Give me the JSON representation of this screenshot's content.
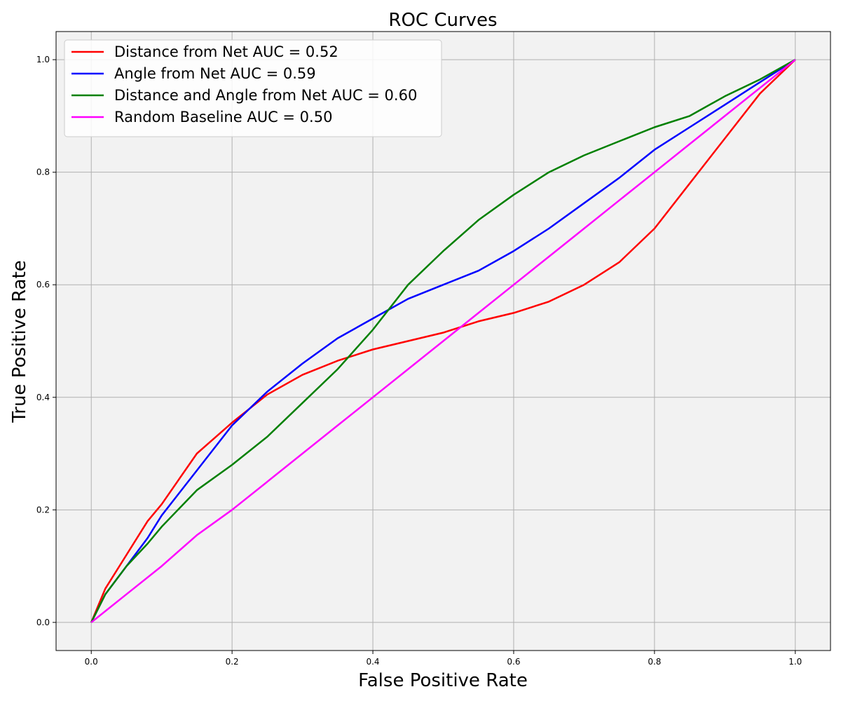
{
  "chart_data": {
    "type": "line",
    "title": "ROC Curves",
    "xlabel": "False Positive Rate",
    "ylabel": "True Positive Rate",
    "xlim": [
      -0.05,
      1.05
    ],
    "ylim": [
      -0.05,
      1.05
    ],
    "xticks": [
      "0.0",
      "0.2",
      "0.4",
      "0.6",
      "0.8",
      "1.0"
    ],
    "yticks": [
      "0.0",
      "0.2",
      "0.4",
      "0.6",
      "0.8",
      "1.0"
    ],
    "grid": true,
    "legend_position": "top-left",
    "background": "#f2f2f2",
    "series": [
      {
        "name": "Distance from Net AUC = 0.52",
        "color": "#ff0000",
        "x": [
          0,
          0.02,
          0.05,
          0.08,
          0.1,
          0.15,
          0.2,
          0.25,
          0.3,
          0.35,
          0.4,
          0.45,
          0.5,
          0.55,
          0.6,
          0.65,
          0.7,
          0.75,
          0.8,
          0.85,
          0.9,
          0.95,
          1.0
        ],
        "y": [
          0,
          0.06,
          0.12,
          0.18,
          0.21,
          0.3,
          0.355,
          0.405,
          0.44,
          0.465,
          0.485,
          0.5,
          0.515,
          0.535,
          0.55,
          0.57,
          0.6,
          0.64,
          0.7,
          0.78,
          0.86,
          0.94,
          1.0
        ]
      },
      {
        "name": "Angle from Net AUC = 0.59",
        "color": "#0000ff",
        "x": [
          0,
          0.02,
          0.05,
          0.08,
          0.1,
          0.15,
          0.2,
          0.25,
          0.3,
          0.35,
          0.4,
          0.45,
          0.5,
          0.55,
          0.6,
          0.65,
          0.7,
          0.75,
          0.8,
          0.85,
          0.9,
          0.95,
          1.0
        ],
        "y": [
          0,
          0.05,
          0.1,
          0.15,
          0.19,
          0.27,
          0.35,
          0.41,
          0.46,
          0.505,
          0.54,
          0.575,
          0.6,
          0.625,
          0.66,
          0.7,
          0.745,
          0.79,
          0.84,
          0.88,
          0.92,
          0.96,
          1.0
        ]
      },
      {
        "name": "Distance and Angle from Net AUC = 0.60",
        "color": "#008000",
        "x": [
          0,
          0.02,
          0.05,
          0.08,
          0.1,
          0.15,
          0.2,
          0.25,
          0.3,
          0.35,
          0.4,
          0.45,
          0.5,
          0.55,
          0.6,
          0.65,
          0.7,
          0.75,
          0.8,
          0.85,
          0.9,
          0.95,
          1.0
        ],
        "y": [
          0,
          0.05,
          0.1,
          0.14,
          0.17,
          0.235,
          0.28,
          0.33,
          0.39,
          0.45,
          0.52,
          0.6,
          0.66,
          0.715,
          0.76,
          0.8,
          0.83,
          0.855,
          0.88,
          0.9,
          0.935,
          0.965,
          1.0
        ]
      },
      {
        "name": "Random Baseline AUC = 0.50",
        "color": "#ff00ff",
        "x": [
          0,
          0.05,
          0.1,
          0.15,
          0.2,
          0.25,
          0.3,
          0.35,
          0.4,
          0.45,
          0.5,
          0.55,
          0.6,
          0.65,
          0.7,
          0.75,
          0.8,
          0.85,
          0.9,
          0.95,
          1.0
        ],
        "y": [
          0,
          0.05,
          0.1,
          0.155,
          0.2,
          0.25,
          0.3,
          0.35,
          0.4,
          0.45,
          0.5,
          0.55,
          0.6,
          0.65,
          0.7,
          0.75,
          0.8,
          0.85,
          0.9,
          0.95,
          1.0
        ]
      }
    ]
  }
}
